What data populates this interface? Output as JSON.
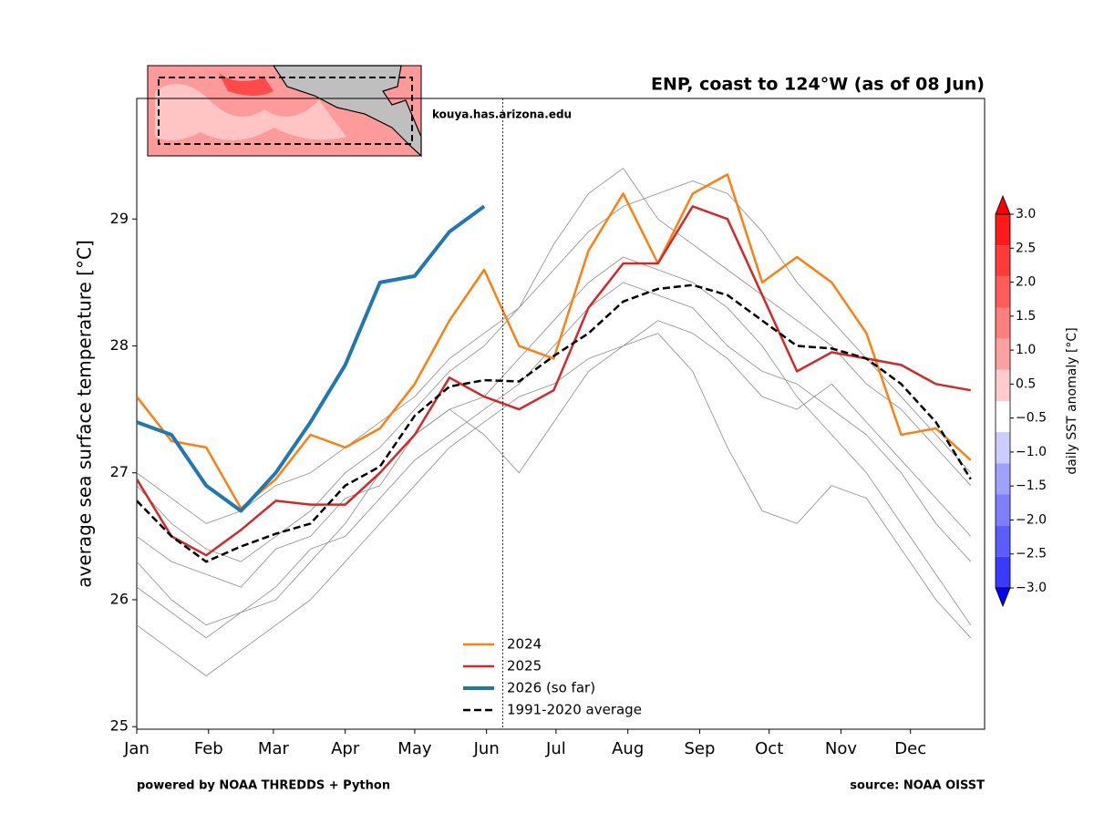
{
  "chart_data": {
    "type": "line",
    "title": "ENP, coast to 124°W (as of 08 Jun)",
    "ylabel": "average sea surface temperature [°C]",
    "site": "kouya.has.arizona.edu",
    "footer_left": "powered by NOAA THREDDS + Python",
    "footer_right": "source: NOAA OISST",
    "x": [
      1,
      16,
      31,
      46,
      61,
      76,
      91,
      106,
      121,
      136,
      151,
      166,
      181,
      196,
      211,
      226,
      241,
      256,
      271,
      286,
      301,
      316,
      331,
      346,
      361
    ],
    "xlim": [
      1,
      367
    ],
    "xticks": [
      {
        "value": 1,
        "label": "Jan"
      },
      {
        "value": 32,
        "label": "Feb"
      },
      {
        "value": 60,
        "label": "Mar"
      },
      {
        "value": 91,
        "label": "Apr"
      },
      {
        "value": 121,
        "label": "May"
      },
      {
        "value": 152,
        "label": "Jun"
      },
      {
        "value": 182,
        "label": "Jul"
      },
      {
        "value": 213,
        "label": "Aug"
      },
      {
        "value": 244,
        "label": "Sep"
      },
      {
        "value": 274,
        "label": "Oct"
      },
      {
        "value": 305,
        "label": "Nov"
      },
      {
        "value": 335,
        "label": "Dec"
      }
    ],
    "ylim": [
      24.98,
      29.95
    ],
    "yticks": [
      25,
      26,
      27,
      28,
      29
    ],
    "current_day": 159,
    "series": [
      {
        "color": "#8c8c8c",
        "linewidth": 0.8,
        "values": [
          26.3,
          26.0,
          25.8,
          25.9,
          26.0,
          26.3,
          26.6,
          27.0,
          27.3,
          27.5,
          27.6,
          27.9,
          28.2,
          28.5,
          28.7,
          28.6,
          28.5,
          28.3,
          28.0,
          27.6,
          27.3,
          27.0,
          26.6,
          26.2,
          25.8
        ]
      },
      {
        "color": "#8c8c8c",
        "linewidth": 0.8,
        "values": [
          27.0,
          26.8,
          26.6,
          26.7,
          26.9,
          27.0,
          27.2,
          27.4,
          27.6,
          27.9,
          28.1,
          28.3,
          28.6,
          28.9,
          29.1,
          29.2,
          29.3,
          29.2,
          28.9,
          28.5,
          28.2,
          27.9,
          27.6,
          27.3,
          27.0
        ]
      },
      {
        "color": "#8c8c8c",
        "linewidth": 0.8,
        "values": [
          26.5,
          26.3,
          26.2,
          26.1,
          26.4,
          26.5,
          26.8,
          26.9,
          27.3,
          27.5,
          27.3,
          27.0,
          27.4,
          27.8,
          28.0,
          28.2,
          28.1,
          27.9,
          27.6,
          27.5,
          27.7,
          27.4,
          27.1,
          26.8,
          26.5
        ]
      },
      {
        "color": "#8c8c8c",
        "linewidth": 0.8,
        "values": [
          25.8,
          25.6,
          25.4,
          25.6,
          25.8,
          26.0,
          26.3,
          26.6,
          26.9,
          27.2,
          27.4,
          27.6,
          27.7,
          27.9,
          28.0,
          28.1,
          27.8,
          27.2,
          26.7,
          26.6,
          26.9,
          26.8,
          26.4,
          26.0,
          25.7
        ]
      },
      {
        "color": "#8c8c8c",
        "linewidth": 0.8,
        "values": [
          26.9,
          26.6,
          26.4,
          26.3,
          26.5,
          26.7,
          27.0,
          27.2,
          27.5,
          27.8,
          28.0,
          28.3,
          28.8,
          29.2,
          29.4,
          29.0,
          28.8,
          28.6,
          28.4,
          28.2,
          28.0,
          27.7,
          27.5,
          27.2,
          26.9
        ]
      },
      {
        "color": "#8c8c8c",
        "linewidth": 0.8,
        "values": [
          26.1,
          25.9,
          25.7,
          25.9,
          26.1,
          26.4,
          26.5,
          26.8,
          27.1,
          27.3,
          27.5,
          27.7,
          28.0,
          28.3,
          28.5,
          28.4,
          28.3,
          28.0,
          27.8,
          27.7,
          27.5,
          27.3,
          27.0,
          26.6,
          26.3
        ]
      },
      {
        "name": "2024",
        "color": "#ff7f0e",
        "linewidth": 2.5,
        "values": [
          27.6,
          27.25,
          27.2,
          26.72,
          26.95,
          27.3,
          27.2,
          27.35,
          27.7,
          28.2,
          28.6,
          28.0,
          27.9,
          28.75,
          29.2,
          28.65,
          29.2,
          29.35,
          28.5,
          28.7,
          28.5,
          28.1,
          27.3,
          27.35,
          27.1
        ]
      },
      {
        "name": "2025",
        "color": "#d62728",
        "linewidth": 2.5,
        "values": [
          26.95,
          26.5,
          26.35,
          26.55,
          26.78,
          26.75,
          26.75,
          27.0,
          27.3,
          27.75,
          27.6,
          27.5,
          27.65,
          28.3,
          28.65,
          28.65,
          29.1,
          29.0,
          28.4,
          27.8,
          27.95,
          27.9,
          27.85,
          27.7,
          27.65
        ]
      },
      {
        "name": "2026 (so far)",
        "color": "#1f77b4",
        "linewidth": 4,
        "values": [
          27.4,
          27.3,
          26.9,
          26.7,
          27.0,
          27.4,
          27.85,
          28.5,
          28.55,
          28.9,
          29.1,
          null,
          null,
          null,
          null,
          null,
          null,
          null,
          null,
          null,
          null,
          null,
          null,
          null,
          null
        ]
      },
      {
        "name": "1991-2020 average",
        "color": "#000000",
        "linewidth": 2.5,
        "linestyle": "dashed",
        "values": [
          26.78,
          26.5,
          26.3,
          26.42,
          26.52,
          26.6,
          26.9,
          27.05,
          27.45,
          27.68,
          27.73,
          27.72,
          27.92,
          28.1,
          28.35,
          28.45,
          28.48,
          28.4,
          28.2,
          28.0,
          27.98,
          27.9,
          27.7,
          27.4,
          26.95
        ]
      }
    ],
    "colorbar": {
      "label": "daily SST anomaly [°C]",
      "ticks": [
        {
          "value": 3,
          "label": "3.0"
        },
        {
          "value": 2.5,
          "label": "2.5"
        },
        {
          "value": 2,
          "label": "2.0"
        },
        {
          "value": 1.5,
          "label": "1.5"
        },
        {
          "value": 1,
          "label": "1.0"
        },
        {
          "value": 0.5,
          "label": "0.5"
        },
        {
          "value": -0.5,
          "label": "−0.5"
        },
        {
          "value": -1,
          "label": "−1.0"
        },
        {
          "value": -1.5,
          "label": "−1.5"
        },
        {
          "value": -2,
          "label": "−2.0"
        },
        {
          "value": -2.5,
          "label": "−2.5"
        },
        {
          "value": -3,
          "label": "−3.0"
        }
      ],
      "colors": [
        "#ff1a1a",
        "#ff3a3a",
        "#ff5c5c",
        "#ff7e7e",
        "#ffa0a0",
        "#ffcccc",
        "#ffffff",
        "#ccccff",
        "#a0a0ff",
        "#7e7eff",
        "#5c5cff",
        "#3a3aff"
      ],
      "over_color": "#ff0000",
      "under_color": "#0000ff"
    }
  }
}
